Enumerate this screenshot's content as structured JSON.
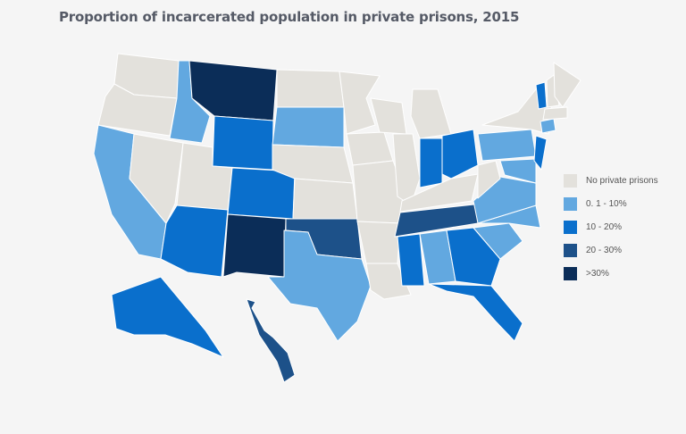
{
  "title": "Proportion of incarcerated population in private prisons, 2015",
  "legend": [
    {
      "key": "none",
      "label": "No private prisons",
      "color": "#e3e1dc"
    },
    {
      "key": "low",
      "label": "0. 1 - 10%",
      "color": "#62a8e0"
    },
    {
      "key": "mid",
      "label": "10 - 20%",
      "color": "#0a6fcc"
    },
    {
      "key": "high",
      "label": "20 - 30%",
      "color": "#1d5189"
    },
    {
      "key": "top",
      "label": ">30%",
      "color": "#0b2d58"
    }
  ],
  "states": {
    "WA": "none",
    "OR": "none",
    "CA": "low",
    "NV": "none",
    "ID": "low",
    "MT": "top",
    "WY": "mid",
    "UT": "none",
    "CO": "mid",
    "AZ": "mid",
    "NM": "top",
    "ND": "none",
    "SD": "low",
    "NE": "none",
    "KS": "none",
    "OK": "high",
    "TX": "low",
    "MN": "none",
    "IA": "none",
    "MO": "none",
    "AR": "none",
    "LA": "none",
    "WI": "none",
    "IL": "none",
    "MI": "none",
    "IN": "mid",
    "OH": "mid",
    "KY": "none",
    "TN": "high",
    "MS": "mid",
    "AL": "low",
    "GA": "mid",
    "FL": "mid",
    "SC": "low",
    "NC": "low",
    "VA": "low",
    "WV": "none",
    "PA": "low",
    "NY": "none",
    "MD": "low",
    "NJ": "mid",
    "CT": "low",
    "VT": "mid",
    "NH": "none",
    "ME": "none",
    "MA": "none",
    "AK": "mid",
    "HI": "high"
  }
}
